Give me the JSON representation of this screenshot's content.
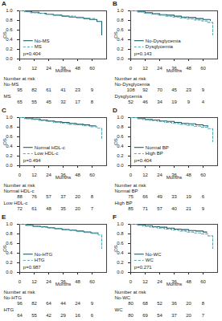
{
  "chart_data": [
    {
      "type": "line",
      "title": "A",
      "xlabel": "Months",
      "ylabel": "OS",
      "annotation": "p=0.404",
      "xlim": [
        0,
        72
      ],
      "xticks": [
        0,
        12,
        24,
        36,
        48,
        60
      ],
      "ylim": [
        0,
        1
      ],
      "yticks": [
        {
          "value": 0,
          "label": "0.0"
        },
        {
          "value": 0.2,
          "label": "0.2"
        },
        {
          "value": 0.4,
          "label": "0.4"
        },
        {
          "value": 0.6,
          "label": "0.6"
        },
        {
          "value": 0.8,
          "label": "0.8"
        },
        {
          "value": 1,
          "label": "1.0"
        }
      ],
      "series": [
        {
          "name": "No-MS",
          "color": "#1d5c6b",
          "line_style": "solid",
          "x": [
            0,
            5,
            10,
            16,
            22,
            28,
            35,
            41,
            47,
            53,
            58,
            64,
            68
          ],
          "values": [
            1,
            0.99,
            0.97,
            0.95,
            0.93,
            0.91,
            0.89,
            0.87,
            0.86,
            0.84,
            0.82,
            0.78,
            0.5
          ]
        },
        {
          "name": "MS",
          "color": "#5aa9b0",
          "line_style": "dashed",
          "x": [
            0,
            4,
            9,
            15,
            21,
            27,
            33,
            40,
            46,
            52,
            58,
            62
          ],
          "values": [
            1,
            0.98,
            0.96,
            0.95,
            0.93,
            0.92,
            0.9,
            0.89,
            0.87,
            0.85,
            0.84,
            0.83
          ]
        }
      ],
      "risk_title": "Number at risk",
      "at_risk": [
        {
          "name": "No-MS",
          "values": [
            95,
            82,
            61,
            41,
            23,
            9
          ]
        },
        {
          "name": "MS",
          "values": [
            65,
            55,
            45,
            32,
            17,
            8
          ]
        }
      ]
    },
    {
      "type": "line",
      "title": "B",
      "xlabel": "Months",
      "ylabel": "OS",
      "annotation": "p=0.143",
      "xlim": [
        0,
        72
      ],
      "xticks": [
        0,
        12,
        24,
        36,
        48,
        60
      ],
      "ylim": [
        0,
        1
      ],
      "yticks": [
        {
          "value": 0,
          "label": "0.0"
        },
        {
          "value": 0.2,
          "label": "0.2"
        },
        {
          "value": 0.4,
          "label": "0.4"
        },
        {
          "value": 0.6,
          "label": "0.6"
        },
        {
          "value": 0.8,
          "label": "0.8"
        },
        {
          "value": 1,
          "label": "1.0"
        }
      ],
      "series": [
        {
          "name": "No-Dysglycemia",
          "color": "#1d5c6b",
          "line_style": "solid",
          "x": [
            0,
            6,
            12,
            18,
            24,
            30,
            36,
            42,
            48,
            54,
            60,
            66
          ],
          "values": [
            1,
            0.98,
            0.96,
            0.94,
            0.92,
            0.91,
            0.89,
            0.87,
            0.86,
            0.84,
            0.82,
            0.8
          ]
        },
        {
          "name": "Dysglycemia",
          "color": "#5aa9b0",
          "line_style": "dashed",
          "x": [
            0,
            5,
            11,
            17,
            23,
            29,
            35,
            41,
            47,
            53,
            59,
            64,
            68
          ],
          "values": [
            1,
            0.98,
            0.95,
            0.93,
            0.91,
            0.89,
            0.87,
            0.85,
            0.83,
            0.81,
            0.79,
            0.76,
            0.5
          ]
        }
      ],
      "risk_title": "Number at risk",
      "at_risk": [
        {
          "name": "No-Dysglycemia",
          "values": [
            108,
            92,
            70,
            45,
            23,
            9
          ]
        },
        {
          "name": "Dysglycemia",
          "values": [
            52,
            46,
            34,
            19,
            9,
            4
          ]
        }
      ]
    },
    {
      "type": "line",
      "title": "C",
      "xlabel": "Months",
      "ylabel": "OS",
      "annotation": "p=0.494",
      "xlim": [
        0,
        72
      ],
      "xticks": [
        0,
        12,
        24,
        36,
        48,
        60
      ],
      "ylim": [
        0,
        1
      ],
      "yticks": [
        {
          "value": 0,
          "label": "0.0"
        },
        {
          "value": 0.2,
          "label": "0.2"
        },
        {
          "value": 0.4,
          "label": "0.4"
        },
        {
          "value": 0.6,
          "label": "0.6"
        },
        {
          "value": 0.8,
          "label": "0.8"
        },
        {
          "value": 1,
          "label": "1.0"
        }
      ],
      "series": [
        {
          "name": "Normal HDL-c",
          "color": "#1d5c6b",
          "line_style": "solid",
          "x": [
            0,
            5,
            11,
            17,
            23,
            29,
            35,
            41,
            47,
            53,
            58,
            63
          ],
          "values": [
            1,
            0.98,
            0.97,
            0.95,
            0.93,
            0.91,
            0.9,
            0.88,
            0.86,
            0.85,
            0.83,
            0.82
          ]
        },
        {
          "name": "Low HDL-c",
          "color": "#5aa9b0",
          "line_style": "dashed",
          "x": [
            0,
            4,
            10,
            16,
            22,
            28,
            34,
            40,
            46,
            52,
            58,
            64,
            68
          ],
          "values": [
            1,
            0.98,
            0.96,
            0.94,
            0.92,
            0.9,
            0.88,
            0.86,
            0.85,
            0.83,
            0.81,
            0.78,
            0.55
          ]
        }
      ],
      "risk_title": "Number at risk",
      "at_risk": [
        {
          "name": "Normal HDL-c",
          "values": [
            88,
            76,
            57,
            37,
            20,
            8
          ]
        },
        {
          "name": "Low HDL-c",
          "values": [
            72,
            61,
            48,
            35,
            20,
            7
          ]
        }
      ]
    },
    {
      "type": "line",
      "title": "D",
      "xlabel": "Months",
      "ylabel": "OS",
      "annotation": "p=0.404",
      "xlim": [
        0,
        72
      ],
      "xticks": [
        0,
        12,
        24,
        36,
        48,
        60
      ],
      "ylim": [
        0,
        1
      ],
      "yticks": [
        {
          "value": 0,
          "label": "0.0"
        },
        {
          "value": 0.2,
          "label": "0.2"
        },
        {
          "value": 0.4,
          "label": "0.4"
        },
        {
          "value": 0.6,
          "label": "0.6"
        },
        {
          "value": 0.8,
          "label": "0.8"
        },
        {
          "value": 1,
          "label": "1.0"
        }
      ],
      "series": [
        {
          "name": "Normal BP",
          "color": "#1d5c6b",
          "line_style": "solid",
          "x": [
            0,
            6,
            12,
            18,
            24,
            30,
            36,
            42,
            48,
            54,
            60,
            64
          ],
          "values": [
            1,
            0.98,
            0.96,
            0.95,
            0.93,
            0.92,
            0.9,
            0.88,
            0.87,
            0.85,
            0.83,
            0.82
          ]
        },
        {
          "name": "High BP",
          "color": "#5aa9b0",
          "line_style": "dashed",
          "x": [
            0,
            5,
            10,
            16,
            22,
            28,
            34,
            40,
            46,
            52,
            58,
            64,
            68
          ],
          "values": [
            1,
            0.98,
            0.96,
            0.94,
            0.92,
            0.9,
            0.88,
            0.86,
            0.84,
            0.82,
            0.8,
            0.77,
            0.5
          ]
        }
      ],
      "risk_title": "Number at risk",
      "at_risk": [
        {
          "name": "Normal BP",
          "values": [
            75,
            66,
            49,
            33,
            19,
            6
          ]
        },
        {
          "name": "High BP",
          "values": [
            85,
            71,
            57,
            40,
            21,
            9
          ]
        }
      ]
    },
    {
      "type": "line",
      "title": "E",
      "xlabel": "Months",
      "ylabel": "OS",
      "annotation": "p=0.987",
      "xlim": [
        0,
        72
      ],
      "xticks": [
        0,
        12,
        24,
        36,
        48,
        60
      ],
      "ylim": [
        0,
        1
      ],
      "yticks": [
        {
          "value": 0,
          "label": "0.0"
        },
        {
          "value": 0.2,
          "label": "0.2"
        },
        {
          "value": 0.4,
          "label": "0.4"
        },
        {
          "value": 0.6,
          "label": "0.6"
        },
        {
          "value": 0.8,
          "label": "0.8"
        },
        {
          "value": 1,
          "label": "1.0"
        }
      ],
      "series": [
        {
          "name": "No-HTG",
          "color": "#1d5c6b",
          "line_style": "solid",
          "x": [
            0,
            5,
            11,
            17,
            23,
            29,
            35,
            41,
            47,
            53,
            59,
            65
          ],
          "values": [
            1,
            0.98,
            0.96,
            0.95,
            0.93,
            0.91,
            0.89,
            0.88,
            0.86,
            0.84,
            0.82,
            0.81
          ]
        },
        {
          "name": "HTG",
          "color": "#5aa9b0",
          "line_style": "dashed",
          "x": [
            0,
            6,
            12,
            18,
            24,
            30,
            36,
            42,
            48,
            54,
            60,
            65,
            68
          ],
          "values": [
            1,
            0.98,
            0.96,
            0.94,
            0.92,
            0.91,
            0.89,
            0.87,
            0.85,
            0.83,
            0.81,
            0.78,
            0.5
          ]
        }
      ],
      "risk_title": "Number at risk",
      "at_risk": [
        {
          "name": "No-HTG",
          "values": [
            96,
            82,
            64,
            44,
            24,
            9
          ]
        },
        {
          "name": "HTG",
          "values": [
            64,
            55,
            42,
            29,
            16,
            6
          ]
        }
      ]
    },
    {
      "type": "line",
      "title": "F",
      "xlabel": "Months",
      "ylabel": "OS",
      "annotation": "p=0.271",
      "xlim": [
        0,
        72
      ],
      "xticks": [
        0,
        12,
        24,
        36,
        48,
        60
      ],
      "ylim": [
        0,
        1
      ],
      "yticks": [
        {
          "value": 0,
          "label": "0.0"
        },
        {
          "value": 0.2,
          "label": "0.2"
        },
        {
          "value": 0.4,
          "label": "0.4"
        },
        {
          "value": 0.6,
          "label": "0.6"
        },
        {
          "value": 0.8,
          "label": "0.8"
        },
        {
          "value": 1,
          "label": "1.0"
        }
      ],
      "series": [
        {
          "name": "No-WC",
          "color": "#1d5c6b",
          "line_style": "solid",
          "x": [
            0,
            6,
            12,
            18,
            24,
            30,
            36,
            42,
            48,
            54,
            60,
            63
          ],
          "values": [
            1,
            0.99,
            0.97,
            0.95,
            0.94,
            0.92,
            0.9,
            0.89,
            0.87,
            0.86,
            0.84,
            0.83
          ]
        },
        {
          "name": "WC",
          "color": "#5aa9b0",
          "line_style": "dashed",
          "x": [
            0,
            5,
            10,
            16,
            22,
            28,
            34,
            40,
            46,
            52,
            58,
            64,
            68
          ],
          "values": [
            1,
            0.98,
            0.96,
            0.94,
            0.92,
            0.9,
            0.88,
            0.86,
            0.84,
            0.82,
            0.8,
            0.76,
            0.5
          ]
        }
      ],
      "risk_title": "Number at risk",
      "at_risk": [
        {
          "name": "No-WC",
          "values": [
            80,
            68,
            52,
            36,
            20,
            8
          ]
        },
        {
          "name": "WC",
          "values": [
            80,
            69,
            54,
            37,
            20,
            7
          ]
        }
      ]
    }
  ]
}
